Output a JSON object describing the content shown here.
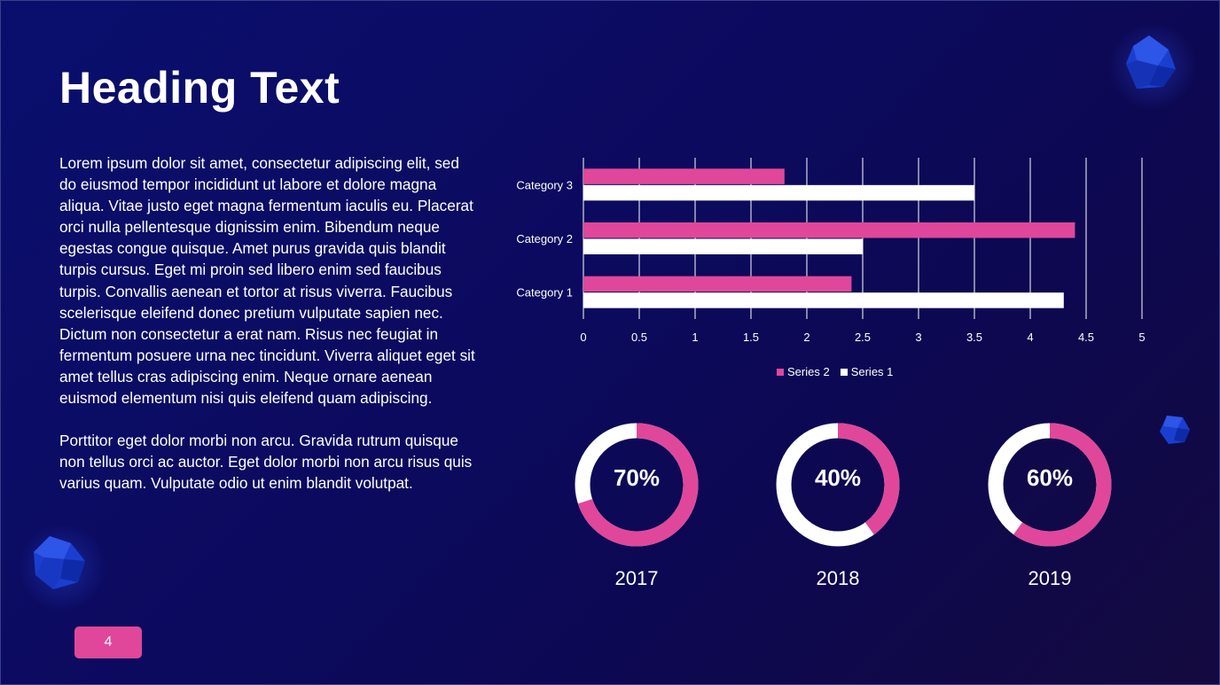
{
  "slide": {
    "heading": "Heading Text",
    "paragraphs": [
      "Lorem ipsum dolor sit amet, consectetur adipiscing elit, sed do eiusmod tempor incididunt ut labore et dolore magna aliqua. Vitae justo eget magna fermentum iaculis eu. Placerat orci nulla pellentesque dignissim enim. Bibendum neque egestas congue quisque. Amet purus gravida quis blandit turpis cursus. Eget mi proin sed libero enim sed faucibus turpis. Convallis aenean et tortor at risus viverra. Faucibus scelerisque eleifend donec pretium vulputate sapien nec. Dictum non consectetur a erat nam. Risus nec feugiat in fermentum posuere urna nec tincidunt. Viverra aliquet eget sit amet tellus cras adipiscing enim. Neque ornare aenean euismod elementum nisi quis eleifend quam adipiscing.",
      "Porttitor eget dolor morbi non arcu. Gravida rutrum quisque non tellus orci ac auctor. Eget dolor morbi non arcu risus quis varius quam. Vulputate odio ut enim blandit volutpat."
    ],
    "page_number": "4"
  },
  "colors": {
    "pink": "#e0479a",
    "white": "#ffffff"
  },
  "chart_data": [
    {
      "type": "bar",
      "orientation": "horizontal",
      "categories": [
        "Category 1",
        "Category 2",
        "Category 3"
      ],
      "series": [
        {
          "name": "Series 1",
          "values": [
            4.3,
            2.5,
            3.5
          ],
          "color": "#ffffff"
        },
        {
          "name": "Series 2",
          "values": [
            2.4,
            4.4,
            1.8
          ],
          "color": "#e0479a"
        }
      ],
      "x_ticks": [
        "0",
        "0.5",
        "1",
        "1.5",
        "2",
        "2.5",
        "3",
        "3.5",
        "4",
        "4.5",
        "5"
      ],
      "xlim": [
        0,
        5
      ],
      "grid": true,
      "legend": [
        "Series 2",
        "Series 1"
      ],
      "legend_position": "bottom"
    },
    {
      "type": "pie",
      "variant": "donut",
      "items": [
        {
          "label": "2017",
          "value": 70,
          "text": "70%"
        },
        {
          "label": "2018",
          "value": 40,
          "text": "40%"
        },
        {
          "label": "2019",
          "value": 60,
          "text": "60%"
        }
      ]
    }
  ]
}
